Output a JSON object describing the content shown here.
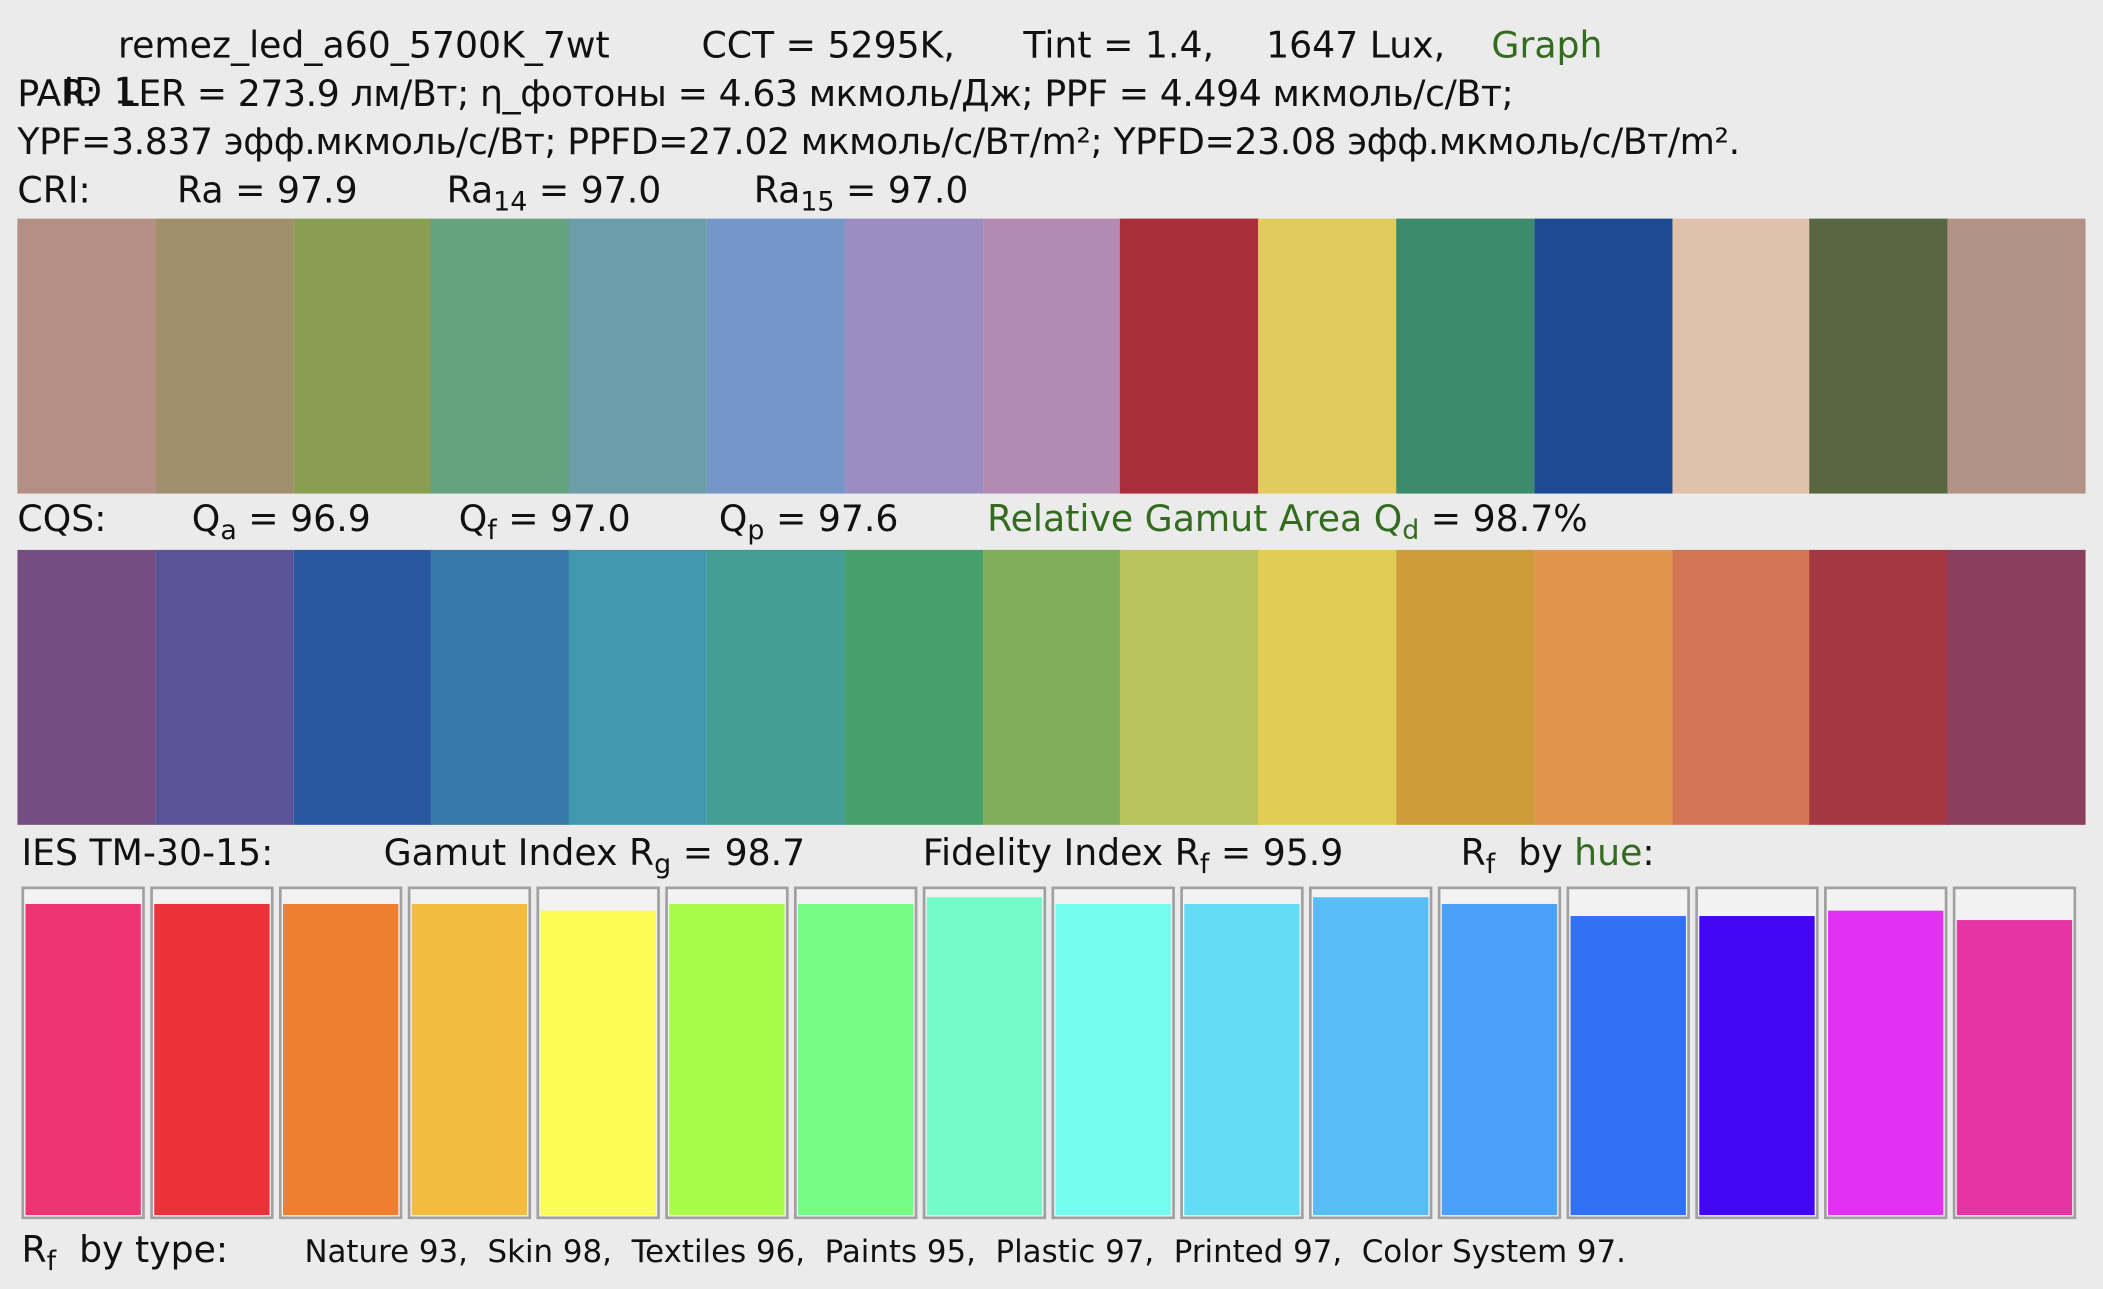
{
  "header": {
    "id": "ID 1",
    "name": "remez_led_a60_5700K_7wt",
    "cct": "CCT = 5295K,",
    "tint": "Tint = 1.4,",
    "lux": "1647 Lux,",
    "graph_link": "Graph"
  },
  "par": {
    "line1": "PAR:  LER = 273.9 лм/Вт; η_фотоны = 4.63 мкмоль/Дж; PPF = 4.494 мкмоль/с/Вт;",
    "line2": "YPF=3.837 эфф.мкмоль/с/Вт; PPFD=27.02 мкмоль/с/Вт/m²; YPFD=23.08 эфф.мкмоль/с/Вт/m²."
  },
  "cri": {
    "label": "CRI:",
    "ra": {
      "symbol": "Ra",
      "value": "= 97.9"
    },
    "ra14": {
      "symbol": "Ra",
      "sub": "14",
      "value": "= 97.0"
    },
    "ra15": {
      "symbol": "Ra",
      "sub": "15",
      "value": "= 97.0"
    },
    "swatches": [
      "#b48f86",
      "#9f8f6a",
      "#8a9e53",
      "#67a27e",
      "#6c9ea9",
      "#7596c9",
      "#9b8cc2",
      "#b38ab2",
      "#a92e3b",
      "#e1cb5c",
      "#3c8b6c",
      "#1e4a93",
      "#e0c1aa",
      "#586741",
      "#b29385"
    ]
  },
  "cqs": {
    "label": "CQS:",
    "qa": {
      "symbol": "Q",
      "sub": "a",
      "value": "= 96.9"
    },
    "qf": {
      "symbol": "Q",
      "sub": "f",
      "value": "= 97.0"
    },
    "qp": {
      "symbol": "Q",
      "sub": "p",
      "value": "= 97.6"
    },
    "qd": {
      "symbol": "Relative Gamut Area Q",
      "sub": "d",
      "value": "= 98.7%"
    },
    "swatches": [
      "#744d82",
      "#5b5597",
      "#2a58a0",
      "#357aab",
      "#4199b0",
      "#449d92",
      "#479f6a",
      "#7fae5a",
      "#b8c45b",
      "#e1cd54",
      "#cf9c3a",
      "#e0944e",
      "#d37553",
      "#a33843",
      "#8c3e5e"
    ]
  },
  "tm30": {
    "label": "IES TM-30-15:",
    "gamut": {
      "symbol": "Gamut Index R",
      "sub": "g",
      "value": "= 98.7"
    },
    "fidelity": {
      "symbol": "Fidelity Index R",
      "sub": "f",
      "value": "= 95.9"
    },
    "by_hue": {
      "symbol": "R",
      "sub": "f",
      "text": "by",
      "link": "hue",
      "colon": ":"
    },
    "bars": {
      "ylim": [
        0,
        100
      ],
      "values": [
        96,
        96,
        96,
        96,
        94,
        96,
        96,
        98,
        96,
        96,
        98,
        96,
        92,
        92,
        94,
        91
      ],
      "colors": [
        "#ec3472",
        "#ea3238",
        "#ee7f31",
        "#f4bb41",
        "#fbfd55",
        "#a8fb4b",
        "#76fb83",
        "#75fbca",
        "#75fbef",
        "#64dbf5",
        "#59bdf5",
        "#4aa1f8",
        "#3171f5",
        "#4306f5",
        "#e230f3",
        "#e535a5"
      ]
    }
  },
  "by_type": {
    "symbol": "R",
    "sub": "f",
    "label": "by type:",
    "text": "Nature 93,  Skin 98,  Textiles 96,  Paints 95,  Plastic 97,  Printed 97,  Color System 97."
  }
}
